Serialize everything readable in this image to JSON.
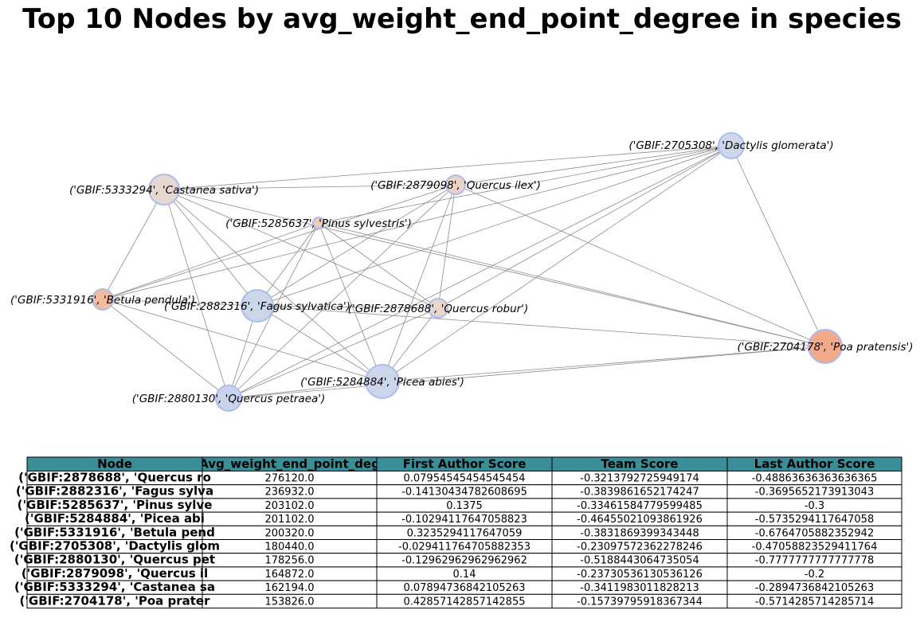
{
  "title": "Top 10 Nodes by avg_weight_end_point_degree in species",
  "colors": {
    "edge": "#8c8c8c",
    "header_bg": "#3a8e98",
    "node_border": "#a9bdf0"
  },
  "graph": {
    "nodes": [
      {
        "id": "2705308",
        "label": "('GBIF:2705308', 'Dactylis glomerata')",
        "fill": "#cfd8ea"
      },
      {
        "id": "5333294",
        "label": "('GBIF:5333294', 'Castanea sativa')",
        "fill": "#e6d8d0"
      },
      {
        "id": "2879098",
        "label": "('GBIF:2879098', 'Quercus ilex')",
        "fill": "#ecd2c4"
      },
      {
        "id": "5285637",
        "label": "('GBIF:5285637', 'Pinus sylvestris')",
        "fill": "#f0cdb8"
      },
      {
        "id": "5331916",
        "label": "('GBIF:5331916', 'Betula pendula')",
        "fill": "#f2bba0"
      },
      {
        "id": "2882316",
        "label": "('GBIF:2882316', 'Fagus sylvatica')",
        "fill": "#ccd6ea"
      },
      {
        "id": "2878688",
        "label": "('GBIF:2878688', 'Quercus robur')",
        "fill": "#e8d6cc"
      },
      {
        "id": "2704178",
        "label": "('GBIF:2704178', 'Poa pratensis')",
        "fill": "#f2aa8a"
      },
      {
        "id": "5284884",
        "label": "('GBIF:5284884', 'Picea abies')",
        "fill": "#ccd6ea"
      },
      {
        "id": "2880130",
        "label": "('GBIF:2880130', 'Quercus petraea')",
        "fill": "#c9d3ec"
      }
    ],
    "edges": [
      [
        "2705308",
        "5333294"
      ],
      [
        "2705308",
        "2879098"
      ],
      [
        "2705308",
        "5285637"
      ],
      [
        "2705308",
        "5331916"
      ],
      [
        "2705308",
        "2882316"
      ],
      [
        "2705308",
        "2878688"
      ],
      [
        "2705308",
        "2704178"
      ],
      [
        "2705308",
        "5284884"
      ],
      [
        "2705308",
        "2880130"
      ],
      [
        "5333294",
        "2879098"
      ],
      [
        "5333294",
        "5331916"
      ],
      [
        "5333294",
        "2882316"
      ],
      [
        "5333294",
        "2878688"
      ],
      [
        "5333294",
        "2704178"
      ],
      [
        "5333294",
        "5284884"
      ],
      [
        "5333294",
        "2880130"
      ],
      [
        "2879098",
        "5331916"
      ],
      [
        "2879098",
        "2882316"
      ],
      [
        "2879098",
        "2878688"
      ],
      [
        "2879098",
        "2704178"
      ],
      [
        "2879098",
        "5284884"
      ],
      [
        "2879098",
        "2880130"
      ],
      [
        "5285637",
        "5331916"
      ],
      [
        "5285637",
        "2882316"
      ],
      [
        "5285637",
        "2878688"
      ],
      [
        "5285637",
        "2704178"
      ],
      [
        "5285637",
        "5284884"
      ],
      [
        "5285637",
        "2880130"
      ],
      [
        "5331916",
        "2882316"
      ],
      [
        "5331916",
        "5284884"
      ],
      [
        "5331916",
        "2880130"
      ],
      [
        "2882316",
        "2878688"
      ],
      [
        "2882316",
        "2704178"
      ],
      [
        "2882316",
        "5284884"
      ],
      [
        "2882316",
        "2880130"
      ],
      [
        "2878688",
        "5284884"
      ],
      [
        "2878688",
        "2880130"
      ],
      [
        "2704178",
        "5284884"
      ],
      [
        "2704178",
        "2880130"
      ],
      [
        "5284884",
        "2880130"
      ]
    ]
  },
  "table": {
    "headers": [
      "Node",
      "Avg_weight_end_point_deg",
      "First Author Score",
      "Team Score",
      "Last Author Score"
    ],
    "rows": [
      [
        "('GBIF:2878688', 'Quercus ro",
        "276120.0",
        "0.07954545454545454",
        "-0.3213792725949174",
        "-0.48863636363636365"
      ],
      [
        "('GBIF:2882316', 'Fagus sylva",
        "236932.0",
        "-0.14130434782608695",
        "-0.3839861652174247",
        "-0.3695652173913043"
      ],
      [
        "('GBIF:5285637', 'Pinus sylve",
        "203102.0",
        "0.1375",
        "-0.33461584779599485",
        "-0.3"
      ],
      [
        "('GBIF:5284884', 'Picea abi",
        "201102.0",
        "-0.10294117647058823",
        "-0.46455021093861926",
        "-0.5735294117647058"
      ],
      [
        "('GBIF:5331916', 'Betula pend",
        "200320.0",
        "0.3235294117647059",
        "-0.3831869399343448",
        "-0.6764705882352942"
      ],
      [
        "('GBIF:2705308', 'Dactylis glom",
        "180440.0",
        "-0.029411764705882353",
        "-0.23097572362278246",
        "-0.47058823529411764"
      ],
      [
        "('GBIF:2880130', 'Quercus pet",
        "178256.0",
        "-0.12962962962962962",
        "-0.5188443064735054",
        "-0.7777777777777778"
      ],
      [
        "('GBIF:2879098', 'Quercus il",
        "164872.0",
        "0.14",
        "-0.23730536130536126",
        "-0.2"
      ],
      [
        "('GBIF:5333294', 'Castanea sa",
        "162194.0",
        "0.07894736842105263",
        "-0.3411983011828213",
        "-0.2894736842105263"
      ],
      [
        "('GBIF:2704178', 'Poa prater",
        "153826.0",
        "0.42857142857142855",
        "-0.15739795918367344",
        "-0.5714285714285714"
      ]
    ]
  }
}
